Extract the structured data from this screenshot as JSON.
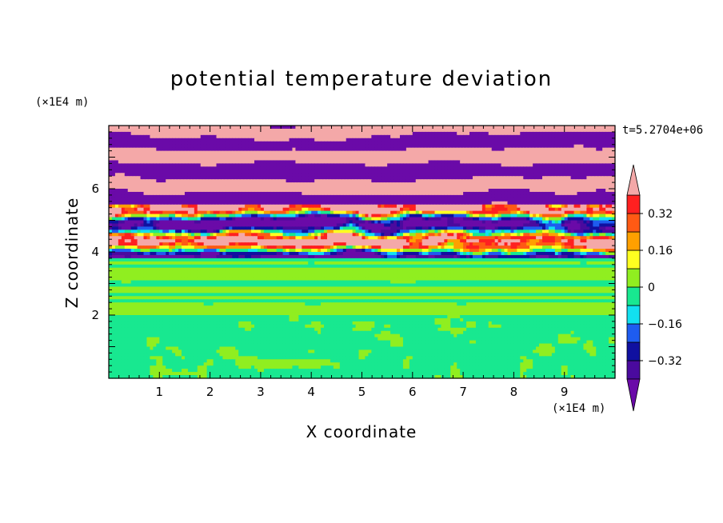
{
  "chart_data": {
    "type": "heatmap",
    "title": "potential temperature deviation",
    "xlabel": "X coordinate",
    "ylabel": "Z coordinate",
    "x_unit": "(×1E4 m)",
    "y_unit": "(×1E4 m)",
    "time_label": "t=5.2704e+06",
    "xlim": [
      0,
      10
    ],
    "ylim": [
      0,
      8
    ],
    "x_ticks": [
      1,
      2,
      3,
      4,
      5,
      6,
      7,
      8,
      9
    ],
    "y_ticks": [
      2,
      4,
      6
    ],
    "colorbar": {
      "levels": [
        -0.48,
        -0.4,
        -0.32,
        -0.24,
        -0.16,
        -0.08,
        0,
        0.08,
        0.16,
        0.24,
        0.32,
        0.4,
        0.48
      ],
      "tick_labels": [
        {
          "value": 0.32,
          "label": "0.32"
        },
        {
          "value": 0.16,
          "label": "0.16"
        },
        {
          "value": 0,
          "label": "0"
        },
        {
          "value": -0.16,
          "label": "−0.16"
        },
        {
          "value": -0.32,
          "label": "−0.32"
        }
      ],
      "colors": [
        "#6a0aa8",
        "#4a0a9e",
        "#1010a0",
        "#1e5cf0",
        "#12e0f0",
        "#18e890",
        "#90ee20",
        "#ffff20",
        "#ffa000",
        "#ff5a14",
        "#ff2020",
        "#f4a8a8"
      ],
      "extend": "both"
    },
    "bands": [
      {
        "z": [
          0,
          2
        ],
        "dominant": [
          -0.08,
          0.0,
          0.08
        ],
        "pattern": "green mix"
      },
      {
        "z": [
          2,
          3.8
        ],
        "dominant": [
          -0.08,
          0.0
        ],
        "pattern": "horizontal layers"
      },
      {
        "z": [
          3.8,
          5.5
        ],
        "dominant": [
          -0.48,
          -0.32,
          0.16,
          0.4,
          0.48
        ],
        "pattern": "turbulent mix"
      },
      {
        "z": [
          5.5,
          8
        ],
        "dominant": [
          -0.48,
          0.48
        ],
        "pattern": "alternating pink/purple layers"
      }
    ]
  }
}
